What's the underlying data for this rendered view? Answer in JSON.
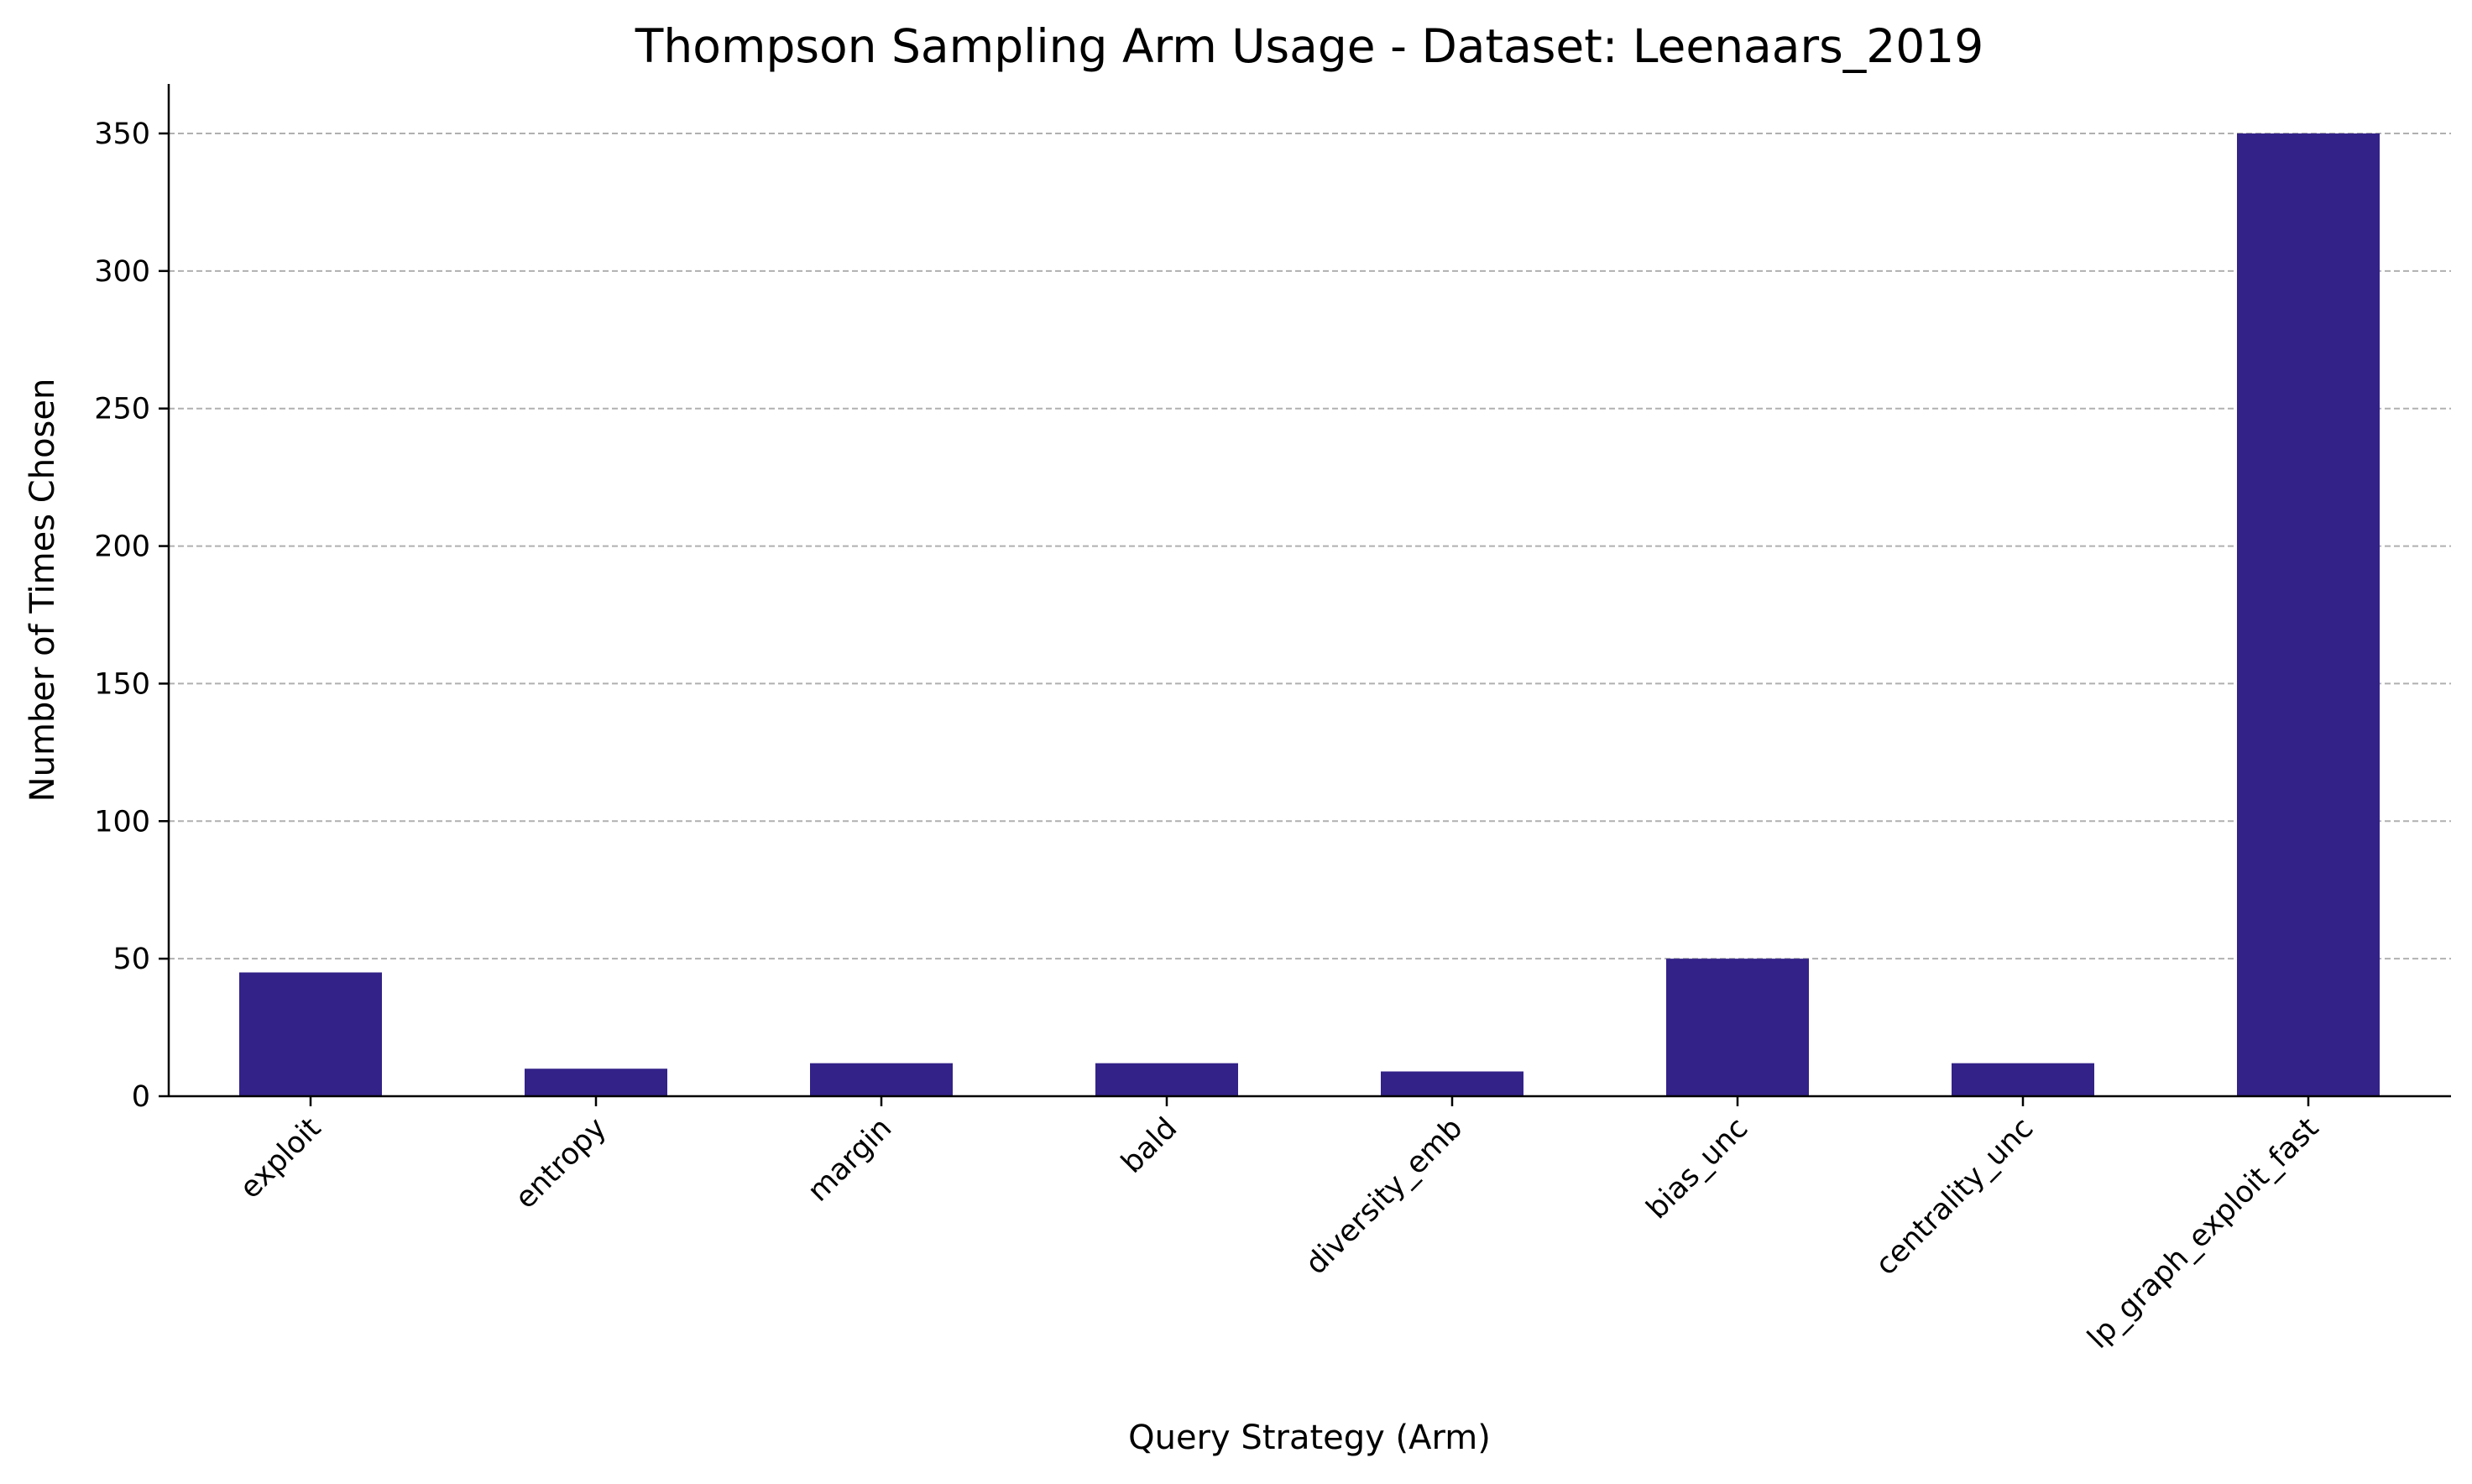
{
  "chart_data": {
    "type": "bar",
    "title": "Thompson Sampling Arm Usage - Dataset: Leenaars_2019",
    "xlabel": "Query Strategy (Arm)",
    "ylabel": "Number of Times Chosen",
    "categories": [
      "exploit",
      "entropy",
      "margin",
      "bald",
      "diversity_emb",
      "bias_unc",
      "centrality_unc",
      "lp_graph_exploit_fast"
    ],
    "values": [
      45,
      10,
      12,
      12,
      9,
      50,
      12,
      350
    ],
    "ylim": [
      0,
      368
    ],
    "yticks": [
      0,
      50,
      100,
      150,
      200,
      250,
      300,
      350
    ],
    "grid": "y-dashed",
    "legend": "none",
    "bar_color": "#332288",
    "x_tick_rotation": 45
  }
}
